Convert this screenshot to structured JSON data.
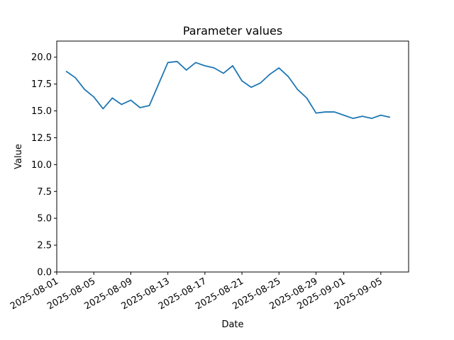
{
  "chart_data": {
    "type": "line",
    "title": "Parameter values",
    "x_label": "Date",
    "y_label": "Value",
    "x": [
      "2025-08-02",
      "2025-08-03",
      "2025-08-04",
      "2025-08-05",
      "2025-08-06",
      "2025-08-07",
      "2025-08-08",
      "2025-08-09",
      "2025-08-10",
      "2025-08-11",
      "2025-08-12",
      "2025-08-13",
      "2025-08-14",
      "2025-08-15",
      "2025-08-16",
      "2025-08-17",
      "2025-08-18",
      "2025-08-19",
      "2025-08-20",
      "2025-08-21",
      "2025-08-22",
      "2025-08-23",
      "2025-08-24",
      "2025-08-25",
      "2025-08-26",
      "2025-08-27",
      "2025-08-28",
      "2025-08-29",
      "2025-08-30",
      "2025-08-31",
      "2025-09-01",
      "2025-09-02",
      "2025-09-03",
      "2025-09-04",
      "2025-09-05",
      "2025-09-06"
    ],
    "series": [
      {
        "color": "#1f77b4",
        "values": [
          18.7,
          18.1,
          17.0,
          16.3,
          15.2,
          16.2,
          15.6,
          16.0,
          15.3,
          15.5,
          17.5,
          19.5,
          19.6,
          18.8,
          19.5,
          19.2,
          19.0,
          18.5,
          19.2,
          17.8,
          17.2,
          17.6,
          18.4,
          19.0,
          18.2,
          17.0,
          16.2,
          14.8,
          14.9,
          14.9,
          14.6,
          14.3,
          14.5,
          14.3,
          14.6,
          14.4
        ]
      }
    ],
    "xlim": [
      "2025-08-01",
      "2025-09-08"
    ],
    "xticks": [
      "2025-08-01",
      "2025-08-05",
      "2025-08-09",
      "2025-08-13",
      "2025-08-17",
      "2025-08-21",
      "2025-08-25",
      "2025-08-29",
      "2025-09-01",
      "2025-09-05"
    ],
    "ylim": [
      0,
      21.5
    ],
    "yticks": [
      {
        "value": 0,
        "label": "0.0"
      },
      {
        "value": 2.5,
        "label": "2.5"
      },
      {
        "value": 5,
        "label": "5.0"
      },
      {
        "value": 7.5,
        "label": "7.5"
      },
      {
        "value": 10,
        "label": "10.0"
      },
      {
        "value": 12.5,
        "label": "12.5"
      },
      {
        "value": 15,
        "label": "15.0"
      },
      {
        "value": 17.5,
        "label": "17.5"
      },
      {
        "value": 20,
        "label": "20.0"
      }
    ]
  }
}
